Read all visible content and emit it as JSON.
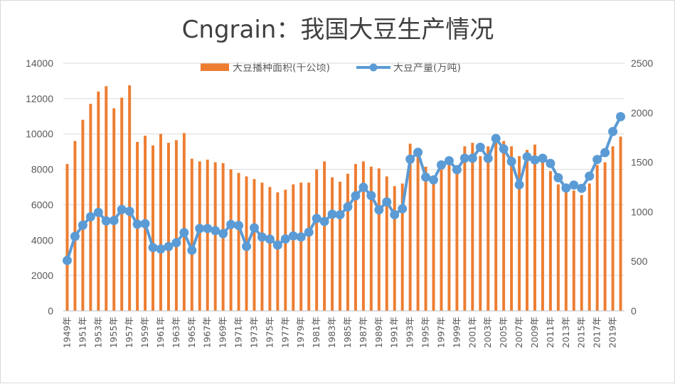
{
  "chart_data": {
    "type": "bar+line",
    "title": "Cngrain：我国大豆生产情况",
    "categories": [
      "1949年",
      "1950年",
      "1951年",
      "1952年",
      "1953年",
      "1954年",
      "1955年",
      "1956年",
      "1957年",
      "1958年",
      "1959年",
      "1960年",
      "1961年",
      "1962年",
      "1963年",
      "1964年",
      "1965年",
      "1966年",
      "1967年",
      "1968年",
      "1969年",
      "1970年",
      "1971年",
      "1972年",
      "1973年",
      "1974年",
      "1975年",
      "1976年",
      "1977年",
      "1978年",
      "1979年",
      "1980年",
      "1981年",
      "1982年",
      "1983年",
      "1984年",
      "1985年",
      "1986年",
      "1987年",
      "1988年",
      "1989年",
      "1990年",
      "1991年",
      "1992年",
      "1993年",
      "1994年",
      "1995年",
      "1996年",
      "1997年",
      "1998年",
      "1999年",
      "2000年",
      "2001年",
      "2002年",
      "2003年",
      "2004年",
      "2005年",
      "2006年",
      "2007年",
      "2008年",
      "2009年",
      "2010年",
      "2011年",
      "2012年",
      "2013年",
      "2014年",
      "2015年",
      "2016年",
      "2017年",
      "2018年",
      "2019年",
      "2020年"
    ],
    "x_tick_labels": [
      "1949年",
      "1951年",
      "1953年",
      "1955年",
      "1957年",
      "1959年",
      "1961年",
      "1963年",
      "1965年",
      "1967年",
      "1969年",
      "1971年",
      "1973年",
      "1975年",
      "1977年",
      "1979年",
      "1981年",
      "1983年",
      "1985年",
      "1987年",
      "1989年",
      "1991年",
      "1993年",
      "1995年",
      "1997年",
      "1999年",
      "2001年",
      "2003年",
      "2005年",
      "2007年",
      "2009年",
      "2011年",
      "2013年",
      "2015年",
      "2017年",
      "2019年"
    ],
    "series": [
      {
        "name": "大豆播种面积(千公顷)",
        "type": "bar",
        "axis": "left",
        "color": "#ED7D31",
        "values": [
          8300,
          9600,
          10800,
          11700,
          12400,
          12700,
          11450,
          12050,
          12750,
          9550,
          9900,
          9350,
          10000,
          9500,
          9650,
          10050,
          8600,
          8450,
          8550,
          8400,
          8350,
          8000,
          7800,
          7600,
          7450,
          7250,
          7000,
          6700,
          6850,
          7150,
          7250,
          7250,
          8000,
          8450,
          7550,
          7300,
          7750,
          8300,
          8450,
          8150,
          8050,
          7600,
          7050,
          7200,
          9450,
          9200,
          8150,
          7500,
          8350,
          8500,
          7950,
          9300,
          9500,
          8750,
          9300,
          9600,
          9600,
          9300,
          8750,
          9100,
          9400,
          8500,
          7900,
          7150,
          6800,
          6800,
          6550,
          7200,
          8250,
          8400,
          9300,
          9850
        ]
      },
      {
        "name": "大豆产量(万吨)",
        "type": "line",
        "axis": "right",
        "color": "#5B9BD5",
        "values": [
          509,
          752,
          865,
          950,
          994,
          908,
          912,
          1023,
          1005,
          875,
          880,
          639,
          625,
          649,
          688,
          790,
          612,
          832,
          832,
          810,
          780,
          872,
          862,
          651,
          838,
          745,
          724,
          664,
          726,
          757,
          746,
          794,
          933,
          903,
          976,
          970,
          1050,
          1161,
          1247,
          1164,
          1020,
          1100,
          971,
          1030,
          1531,
          1600,
          1350,
          1322,
          1473,
          1515,
          1425,
          1541,
          1541,
          1651,
          1539,
          1740,
          1635,
          1508,
          1273,
          1554,
          1524,
          1540,
          1488,
          1344,
          1240,
          1270,
          1237,
          1360,
          1528,
          1597,
          1810,
          1960
        ]
      }
    ],
    "y_left": {
      "min": 0,
      "max": 14000,
      "ticks": [
        0,
        2000,
        4000,
        6000,
        8000,
        10000,
        12000,
        14000
      ]
    },
    "y_right": {
      "min": 0,
      "max": 2500,
      "ticks": [
        0,
        500,
        1000,
        1500,
        2000,
        2500
      ]
    },
    "legend_position": "top-center",
    "grid": true
  }
}
